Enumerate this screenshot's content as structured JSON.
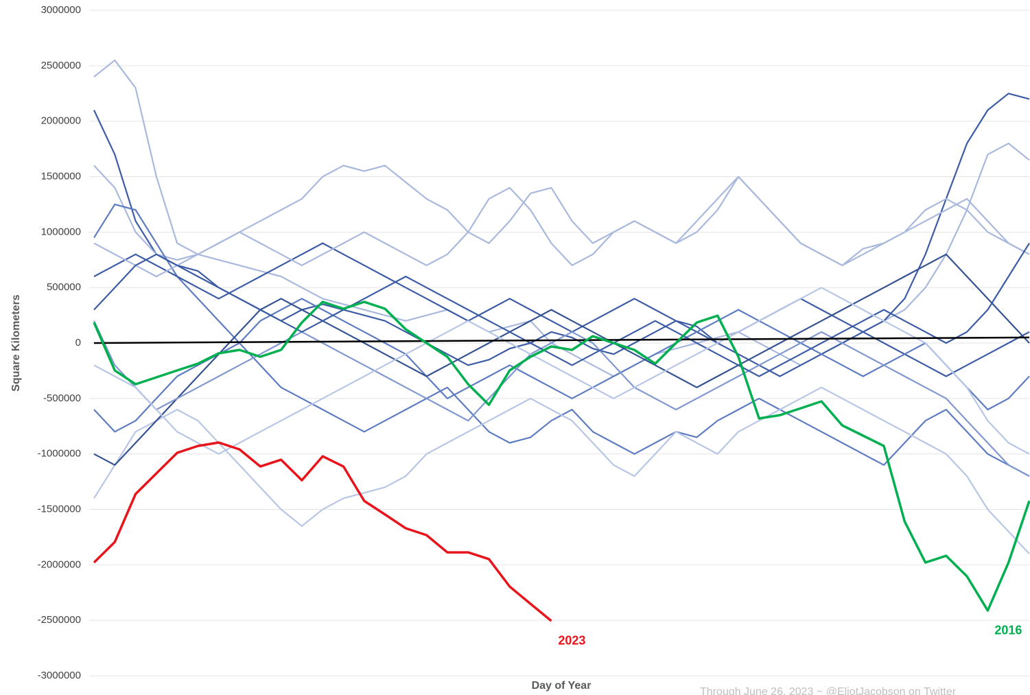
{
  "chart_data": {
    "type": "line",
    "y_label": "Square Kilometers",
    "x_label": "Day of Year",
    "footnote": "Through June 26, 2023 ~ @EliotJacobson on Twitter",
    "ylim": [
      -3000000,
      3000000
    ],
    "yticks": [
      -3000000,
      -2500000,
      -2000000,
      -1500000,
      -1000000,
      -500000,
      0,
      500000,
      1000000,
      1500000,
      2000000,
      2500000,
      3000000
    ],
    "grid": true,
    "reference_line": {
      "color": "#000000",
      "values": [
        0,
        50000
      ]
    },
    "series": [
      {
        "color": "#a9b8dd",
        "values": [
          2400000,
          2550000,
          2300000,
          1500000,
          900000,
          800000,
          750000,
          700000,
          650000,
          600000,
          500000,
          400000,
          350000,
          300000,
          250000,
          200000,
          250000,
          300000,
          200000,
          100000,
          150000,
          200000,
          0,
          -100000,
          -200000,
          -300000,
          -200000,
          -100000,
          -50000,
          0,
          50000,
          100000,
          0,
          -100000,
          -200000,
          -100000,
          0,
          100000,
          200000,
          300000,
          500000,
          800000,
          1200000,
          1700000,
          1800000,
          1650000
        ]
      },
      {
        "color": "#3b5ba5",
        "values": [
          2100000,
          1700000,
          1100000,
          800000,
          700000,
          650000,
          500000,
          400000,
          300000,
          200000,
          300000,
          350000,
          300000,
          250000,
          200000,
          100000,
          0,
          -100000,
          -200000,
          -150000,
          -50000,
          0,
          100000,
          50000,
          -50000,
          -100000,
          0,
          100000,
          200000,
          150000,
          0,
          -100000,
          -200000,
          -300000,
          -200000,
          -100000,
          0,
          100000,
          200000,
          400000,
          800000,
          1300000,
          1800000,
          2100000,
          2250000,
          2200000
        ]
      },
      {
        "color": "#a9b8dd",
        "values": [
          1600000,
          1400000,
          1000000,
          800000,
          750000,
          800000,
          900000,
          1000000,
          1100000,
          1200000,
          1300000,
          1500000,
          1600000,
          1550000,
          1600000,
          1450000,
          1300000,
          1200000,
          1000000,
          900000,
          1100000,
          1350000,
          1400000,
          1100000,
          900000,
          1000000,
          1100000,
          1000000,
          900000,
          1000000,
          1200000,
          1500000,
          1300000,
          1100000,
          900000,
          800000,
          700000,
          850000,
          900000,
          1000000,
          1100000,
          1200000,
          1300000,
          1100000,
          900000,
          800000
        ]
      },
      {
        "color": "#5d7bc0",
        "values": [
          950000,
          1250000,
          1200000,
          900000,
          600000,
          400000,
          200000,
          0,
          -200000,
          -400000,
          -500000,
          -600000,
          -700000,
          -800000,
          -700000,
          -600000,
          -500000,
          -400000,
          -600000,
          -800000,
          -900000,
          -850000,
          -700000,
          -600000,
          -800000,
          -900000,
          -1000000,
          -900000,
          -800000,
          -850000,
          -700000,
          -600000,
          -500000,
          -600000,
          -700000,
          -800000,
          -900000,
          -1000000,
          -1100000,
          -900000,
          -700000,
          -600000,
          -800000,
          -1000000,
          -1100000,
          -1200000
        ]
      },
      {
        "color": "#3b5ba5",
        "values": [
          600000,
          700000,
          800000,
          700000,
          600000,
          500000,
          400000,
          500000,
          600000,
          700000,
          800000,
          900000,
          800000,
          700000,
          600000,
          500000,
          400000,
          300000,
          200000,
          300000,
          400000,
          300000,
          200000,
          100000,
          200000,
          300000,
          400000,
          300000,
          200000,
          100000,
          0,
          100000,
          200000,
          300000,
          400000,
          300000,
          200000,
          100000,
          0,
          -100000,
          -200000,
          -300000,
          -200000,
          -100000,
          0,
          100000
        ]
      },
      {
        "color": "#b8c6e6",
        "values": [
          -1400000,
          -1100000,
          -800000,
          -700000,
          -600000,
          -700000,
          -900000,
          -1100000,
          -1300000,
          -1500000,
          -1650000,
          -1500000,
          -1400000,
          -1350000,
          -1300000,
          -1200000,
          -1000000,
          -900000,
          -800000,
          -700000,
          -600000,
          -500000,
          -600000,
          -700000,
          -900000,
          -1100000,
          -1200000,
          -1000000,
          -800000,
          -900000,
          -1000000,
          -800000,
          -700000,
          -600000,
          -500000,
          -400000,
          -500000,
          -600000,
          -700000,
          -800000,
          -900000,
          -1000000,
          -1200000,
          -1500000,
          -1700000,
          -1900000
        ]
      },
      {
        "color": "#5d7bc0",
        "values": [
          -600000,
          -800000,
          -700000,
          -500000,
          -300000,
          -200000,
          -100000,
          0,
          200000,
          300000,
          400000,
          300000,
          200000,
          100000,
          0,
          -100000,
          -300000,
          -500000,
          -400000,
          -300000,
          -200000,
          -300000,
          -400000,
          -500000,
          -400000,
          -300000,
          -200000,
          -100000,
          0,
          100000,
          200000,
          300000,
          200000,
          100000,
          0,
          -100000,
          -200000,
          -300000,
          -200000,
          -100000,
          0,
          -200000,
          -400000,
          -600000,
          -500000,
          -300000
        ]
      },
      {
        "color": "#a9b8dd",
        "values": [
          900000,
          800000,
          700000,
          600000,
          700000,
          800000,
          900000,
          1000000,
          900000,
          800000,
          700000,
          800000,
          900000,
          1000000,
          900000,
          800000,
          700000,
          800000,
          1000000,
          1300000,
          1400000,
          1200000,
          900000,
          700000,
          800000,
          1000000,
          1100000,
          1000000,
          900000,
          1100000,
          1300000,
          1500000,
          1300000,
          1100000,
          900000,
          800000,
          700000,
          800000,
          900000,
          1000000,
          1200000,
          1300000,
          1200000,
          1000000,
          900000,
          800000
        ]
      },
      {
        "color": "#34528f",
        "values": [
          -1000000,
          -1100000,
          -900000,
          -700000,
          -500000,
          -300000,
          -100000,
          100000,
          300000,
          400000,
          300000,
          200000,
          100000,
          0,
          -100000,
          -200000,
          -300000,
          -200000,
          -100000,
          0,
          100000,
          200000,
          300000,
          200000,
          100000,
          0,
          -100000,
          -200000,
          -300000,
          -400000,
          -300000,
          -200000,
          -100000,
          0,
          100000,
          200000,
          300000,
          400000,
          500000,
          600000,
          700000,
          800000,
          600000,
          400000,
          200000,
          0
        ]
      },
      {
        "color": "#8097cf",
        "values": [
          200000,
          -200000,
          -400000,
          -600000,
          -500000,
          -400000,
          -300000,
          -200000,
          -100000,
          0,
          100000,
          0,
          -100000,
          -200000,
          -300000,
          -400000,
          -500000,
          -600000,
          -700000,
          -500000,
          -300000,
          -100000,
          0,
          100000,
          0,
          -200000,
          -400000,
          -500000,
          -600000,
          -500000,
          -400000,
          -300000,
          -200000,
          -100000,
          0,
          100000,
          0,
          -100000,
          -200000,
          -300000,
          -400000,
          -500000,
          -700000,
          -900000,
          -1100000,
          -1200000
        ]
      },
      {
        "color": "#3b5ba5",
        "values": [
          300000,
          500000,
          700000,
          800000,
          700000,
          600000,
          500000,
          400000,
          300000,
          200000,
          100000,
          200000,
          300000,
          400000,
          500000,
          600000,
          500000,
          400000,
          300000,
          200000,
          100000,
          0,
          -100000,
          -200000,
          -100000,
          0,
          100000,
          200000,
          100000,
          0,
          -100000,
          -200000,
          -300000,
          -200000,
          -100000,
          0,
          100000,
          200000,
          300000,
          200000,
          100000,
          0,
          100000,
          300000,
          600000,
          900000
        ]
      },
      {
        "color": "#b8c6e6",
        "values": [
          -200000,
          -300000,
          -400000,
          -600000,
          -800000,
          -900000,
          -1000000,
          -900000,
          -800000,
          -700000,
          -600000,
          -500000,
          -400000,
          -300000,
          -200000,
          -100000,
          0,
          100000,
          200000,
          100000,
          0,
          -100000,
          -200000,
          -300000,
          -400000,
          -500000,
          -400000,
          -300000,
          -200000,
          -100000,
          0,
          100000,
          200000,
          300000,
          400000,
          500000,
          400000,
          300000,
          200000,
          100000,
          0,
          -200000,
          -400000,
          -700000,
          -900000,
          -1000000
        ]
      },
      {
        "name": "2016",
        "color": "#00b050",
        "values": [
          185000,
          -247000,
          -371000,
          -309000,
          -247000,
          -186000,
          -93000,
          -62000,
          -124000,
          -62000,
          185000,
          371000,
          309000,
          371000,
          309000,
          124000,
          0,
          -124000,
          -371000,
          -557000,
          -247000,
          -124000,
          -31000,
          -62000,
          62000,
          0,
          -62000,
          -186000,
          0,
          185000,
          247000,
          -124000,
          -680000,
          -650000,
          -588000,
          -526000,
          -742000,
          -835000,
          -928000,
          -1608000,
          -1979000,
          -1918000,
          -2103000,
          -2412000,
          -1979000,
          -1423000
        ]
      },
      {
        "name": "2023",
        "color": "#e8141b",
        "values": [
          -1979000,
          -1794000,
          -1361000,
          -1175000,
          -990000,
          -928000,
          -897000,
          -959000,
          -1113000,
          -1052000,
          -1237000,
          -1021000,
          -1113000,
          -1423000,
          -1546000,
          -1670000,
          -1732000,
          -1887000,
          -1887000,
          -1948000,
          -2196000,
          -2351000,
          -2505000
        ]
      }
    ]
  }
}
